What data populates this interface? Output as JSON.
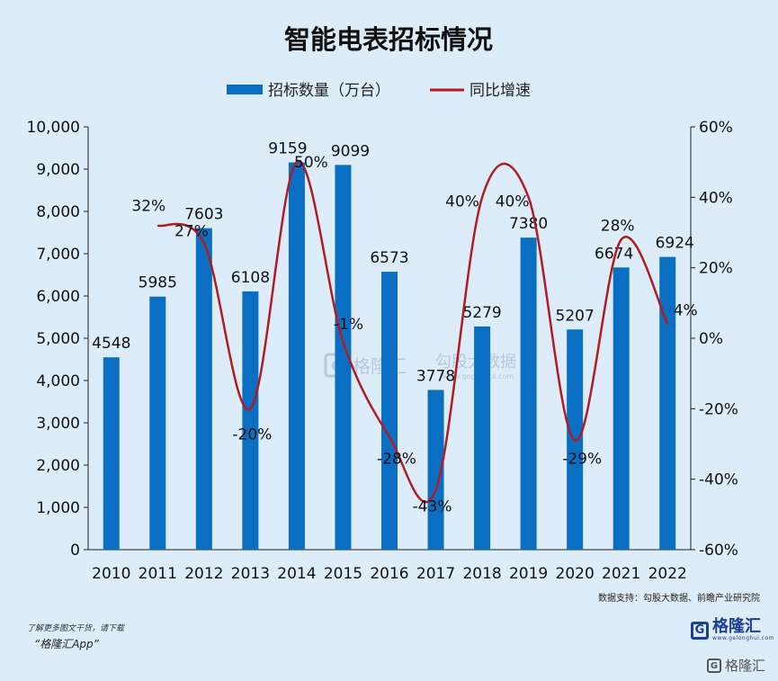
{
  "chart_data": {
    "type": "bar",
    "title": "智能电表招标情况",
    "categories": [
      "2010",
      "2011",
      "2012",
      "2013",
      "2014",
      "2015",
      "2016",
      "2017",
      "2018",
      "2019",
      "2020",
      "2021",
      "2022"
    ],
    "series": [
      {
        "name": "招标数量（万台）",
        "type": "bar",
        "axis": "left",
        "color": "#0a6fc2",
        "values": [
          4548,
          5985,
          7603,
          6108,
          9159,
          9099,
          6573,
          3778,
          5279,
          7380,
          5207,
          6674,
          6924
        ],
        "labels": [
          "4548",
          "5985",
          "7603",
          "6108",
          "9159",
          "9099",
          "6573",
          "3778",
          "5279",
          "7380",
          "5207",
          "6674",
          "6924"
        ]
      },
      {
        "name": "同比增速",
        "type": "line",
        "axis": "right",
        "color": "#b01c22",
        "values": [
          null,
          32,
          27,
          -20,
          50,
          -1,
          -28,
          -43,
          40,
          40,
          -29,
          28,
          4
        ],
        "labels": [
          "",
          "32%",
          "27%",
          "-20%",
          "50%",
          "-1%",
          "-28%",
          "-43%",
          "40%",
          "40%",
          "-29%",
          "28%",
          "4%"
        ]
      }
    ],
    "y_left": {
      "min": 0,
      "max": 10000,
      "ticks": [
        "0",
        "1,000",
        "2,000",
        "3,000",
        "4,000",
        "5,000",
        "6,000",
        "7,000",
        "8,000",
        "9,000",
        "10,000"
      ]
    },
    "y_right": {
      "min": -60,
      "max": 60,
      "ticks": [
        "-60%",
        "-40%",
        "-20%",
        "0%",
        "20%",
        "40%",
        "60%"
      ]
    },
    "legend_position": "top-center",
    "grid": false
  },
  "watermark": {
    "name": "格隆汇",
    "sub": "勾股大数据",
    "url": "www.gogudata.com"
  },
  "footer": {
    "source": "数据支持：勾股大数据、前瞻产业研究院",
    "promo_line1": "了解更多图文干货，请下载",
    "promo_line2": "“格隆汇App”",
    "brand_logo_letter": "G",
    "brand_name": "格隆汇",
    "brand_url": "www.gelonghui.com",
    "corner_brand": "格隆汇"
  }
}
